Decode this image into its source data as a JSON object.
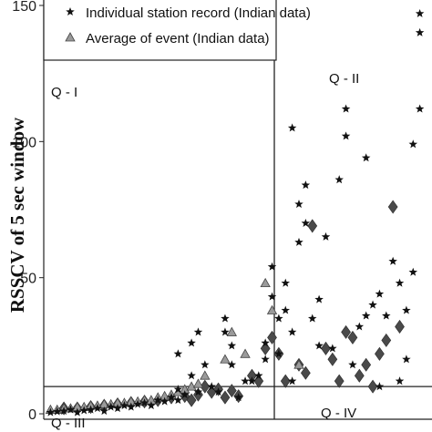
{
  "chart_data": {
    "type": "scatter",
    "ylabel": "RSSCV of 5 sec window",
    "ylim": [
      -2,
      152
    ],
    "yticks": [
      0,
      50,
      100,
      150
    ],
    "grid": false,
    "legend": {
      "placement": "top",
      "entries": [
        {
          "label": "Individual station record (Indian data)",
          "marker": "star"
        },
        {
          "label": "Average of event (Indian data)",
          "marker": "triangle"
        }
      ]
    },
    "threshold_line": 10,
    "quadrant_labels": [
      "Q - I",
      "Q - II",
      "Q - III",
      "Q - IV"
    ],
    "series": [
      {
        "name": "Individual station record (Indian data)",
        "marker": "star",
        "points": [
          [
            1,
            0.5
          ],
          [
            2,
            0.8
          ],
          [
            3,
            1.0
          ],
          [
            4,
            1.5
          ],
          [
            5,
            0.5
          ],
          [
            6,
            1.2
          ],
          [
            7,
            1.5
          ],
          [
            8,
            2.0
          ],
          [
            9,
            1.0
          ],
          [
            10,
            2.5
          ],
          [
            11,
            2.0
          ],
          [
            12,
            3.0
          ],
          [
            13,
            2.5
          ],
          [
            14,
            3.5
          ],
          [
            15,
            4.0
          ],
          [
            16,
            3.0
          ],
          [
            17,
            5.0
          ],
          [
            18,
            4.5
          ],
          [
            19,
            6.0
          ],
          [
            20,
            5.0
          ],
          [
            20,
            9.0
          ],
          [
            20,
            22.0
          ],
          [
            21,
            7.0
          ],
          [
            22,
            14.0
          ],
          [
            22,
            26.0
          ],
          [
            23,
            8.0
          ],
          [
            23,
            30.0
          ],
          [
            24,
            18.0
          ],
          [
            25,
            10.0
          ],
          [
            26,
            8.0
          ],
          [
            27,
            30.0
          ],
          [
            27,
            35.0
          ],
          [
            28,
            18.0
          ],
          [
            28,
            25.0
          ],
          [
            29,
            6.0
          ],
          [
            30,
            12.0
          ],
          [
            31,
            12.0
          ],
          [
            32,
            14.0
          ],
          [
            33,
            20.0
          ],
          [
            33,
            26.0
          ],
          [
            34,
            43.0
          ],
          [
            34,
            54.0
          ],
          [
            35,
            22.0
          ],
          [
            35,
            35.0
          ],
          [
            36,
            38.0
          ],
          [
            36,
            48.0
          ],
          [
            37,
            12.0
          ],
          [
            37,
            30.0
          ],
          [
            37,
            105.0
          ],
          [
            38,
            77.0
          ],
          [
            38,
            63.0
          ],
          [
            39,
            70.0
          ],
          [
            39,
            84.0
          ],
          [
            40,
            35.0
          ],
          [
            41,
            25.0
          ],
          [
            41,
            42.0
          ],
          [
            42,
            65.0
          ],
          [
            43,
            24.0
          ],
          [
            44,
            86.0
          ],
          [
            45,
            112.0
          ],
          [
            45,
            102.0
          ],
          [
            46,
            18.0
          ],
          [
            47,
            32.0
          ],
          [
            48,
            36.0
          ],
          [
            48,
            94.0
          ],
          [
            49,
            40.0
          ],
          [
            50,
            10.0
          ],
          [
            50,
            44.0
          ],
          [
            51,
            36.0
          ],
          [
            52,
            56.0
          ],
          [
            53,
            12.0
          ],
          [
            53,
            48.0
          ],
          [
            54,
            20.0
          ],
          [
            54,
            38.0
          ],
          [
            55,
            52.0
          ],
          [
            55,
            99.0
          ],
          [
            56,
            112.0
          ],
          [
            56,
            140.0
          ],
          [
            56,
            147.0
          ]
        ]
      },
      {
        "name": "Average of event (Indian data)",
        "marker": "triangle",
        "points": [
          [
            1,
            1.5
          ],
          [
            2,
            1.5
          ],
          [
            3,
            2.0
          ],
          [
            4,
            2.0
          ],
          [
            5,
            2.5
          ],
          [
            6,
            2.5
          ],
          [
            7,
            3.0
          ],
          [
            8,
            3.0
          ],
          [
            9,
            3.5
          ],
          [
            10,
            3.5
          ],
          [
            11,
            4.0
          ],
          [
            12,
            4.0
          ],
          [
            13,
            4.5
          ],
          [
            14,
            4.5
          ],
          [
            15,
            5.0
          ],
          [
            16,
            5.0
          ],
          [
            17,
            6.0
          ],
          [
            18,
            6.5
          ],
          [
            19,
            7.0
          ],
          [
            20,
            8.0
          ],
          [
            21,
            9.0
          ],
          [
            22,
            10.0
          ],
          [
            23,
            11.0
          ],
          [
            24,
            14.0
          ],
          [
            27,
            20.0
          ],
          [
            28,
            30.0
          ],
          [
            30,
            22.0
          ],
          [
            33,
            48.0
          ],
          [
            34,
            38.0
          ],
          [
            38,
            18.0
          ]
        ]
      },
      {
        "name": "",
        "marker": "diamond",
        "points": [
          [
            3,
            2.0
          ],
          [
            5,
            2.0
          ],
          [
            7,
            2.5
          ],
          [
            9,
            3.0
          ],
          [
            11,
            3.5
          ],
          [
            13,
            4.0
          ],
          [
            15,
            4.5
          ],
          [
            17,
            5.0
          ],
          [
            19,
            6.0
          ],
          [
            21,
            6.5
          ],
          [
            22,
            5.0
          ],
          [
            23,
            7.0
          ],
          [
            24,
            10.0
          ],
          [
            25,
            8.0
          ],
          [
            26,
            9.0
          ],
          [
            27,
            6.0
          ],
          [
            28,
            8.5
          ],
          [
            29,
            6.5
          ],
          [
            31,
            14.0
          ],
          [
            32,
            12.0
          ],
          [
            33,
            24.0
          ],
          [
            34,
            28.0
          ],
          [
            35,
            22.0
          ],
          [
            36,
            12.0
          ],
          [
            38,
            18.0
          ],
          [
            39,
            15.0
          ],
          [
            40,
            69.0
          ],
          [
            42,
            24.0
          ],
          [
            43,
            20.0
          ],
          [
            44,
            12.0
          ],
          [
            45,
            30.0
          ],
          [
            46,
            28.0
          ],
          [
            47,
            14.0
          ],
          [
            48,
            18.0
          ],
          [
            49,
            10.0
          ],
          [
            50,
            22.0
          ],
          [
            51,
            27.0
          ],
          [
            52,
            76.0
          ],
          [
            53,
            32.0
          ]
        ]
      }
    ]
  }
}
